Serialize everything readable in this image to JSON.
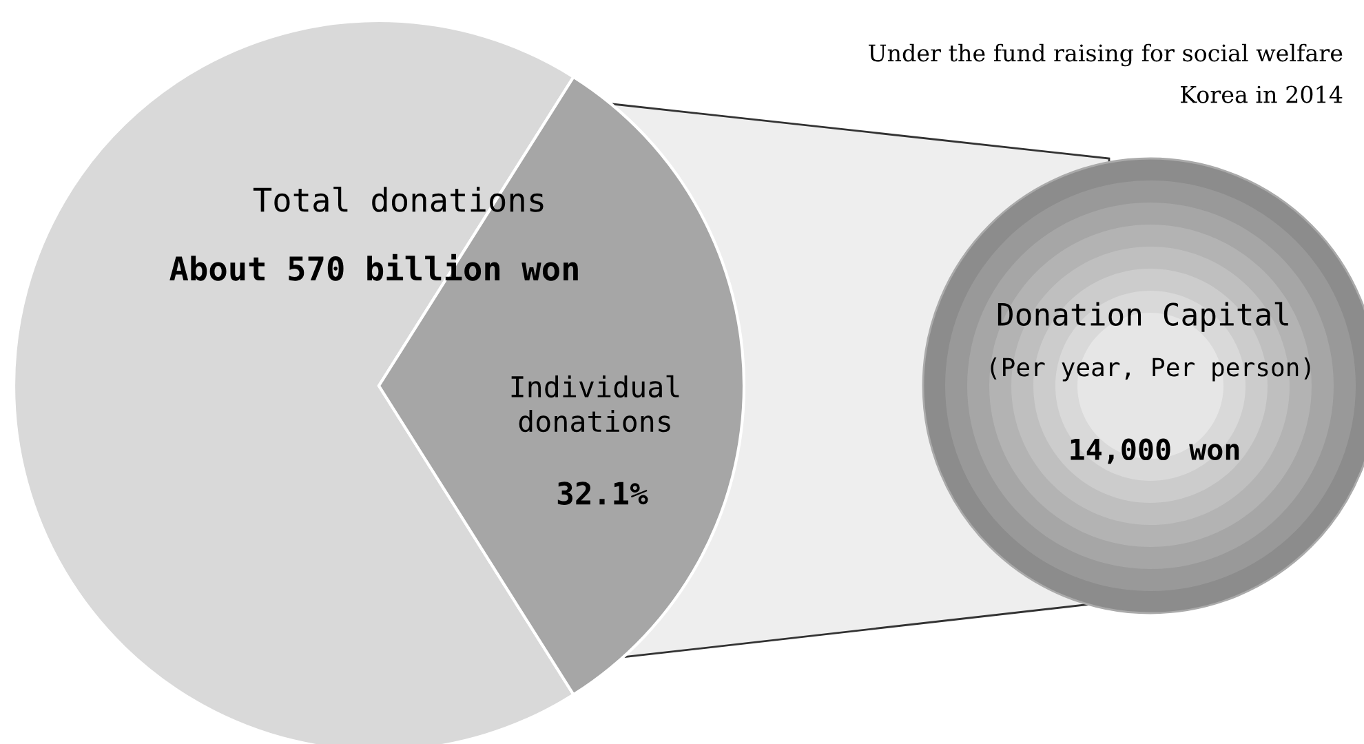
{
  "chart_data": {
    "type": "pie",
    "title": "Under the fund raising for social welfare",
    "subtitle": "Korea in 2014",
    "categories": [
      "Total donations",
      "Individual donations"
    ],
    "values": [
      67.9,
      32.1
    ],
    "colors": [
      "#d9d9d9",
      "#a6a6a6"
    ],
    "value_labels": [
      null,
      "32.1%"
    ],
    "annotations": [
      "About 570 billion won",
      "Donation Capital",
      "(Per year, Per person)",
      "14,000 won"
    ]
  }
}
